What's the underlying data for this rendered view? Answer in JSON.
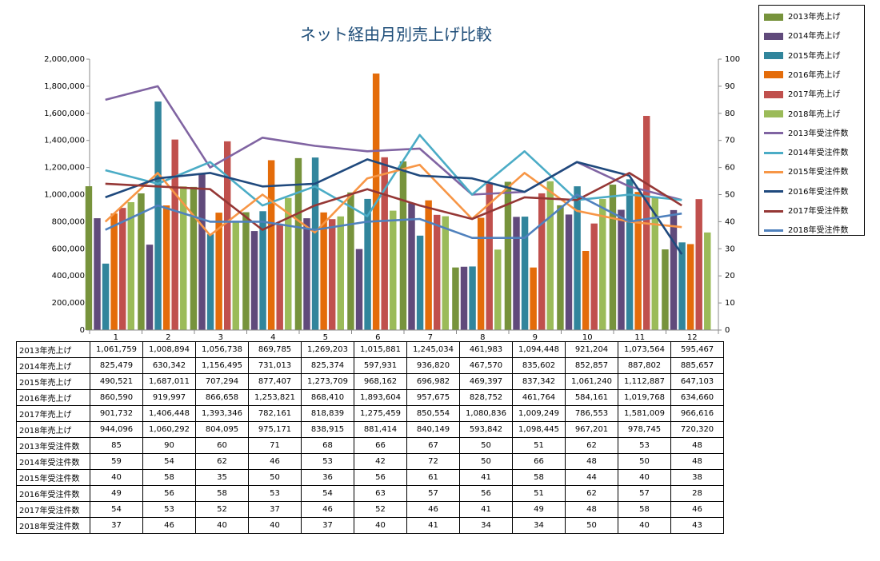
{
  "chart_data": {
    "type": "bar",
    "title": "ネット経由月別売上げ比較",
    "categories": [
      "1",
      "2",
      "3",
      "4",
      "5",
      "6",
      "7",
      "8",
      "9",
      "10",
      "11",
      "12"
    ],
    "y_left": {
      "ylim": [
        0,
        2000000
      ],
      "ticks": [
        "0",
        "200,000",
        "400,000",
        "600,000",
        "800,000",
        "1,000,000",
        "1,200,000",
        "1,400,000",
        "1,600,000",
        "1,800,000",
        "2,000,000"
      ]
    },
    "y_right": {
      "ylim": [
        0,
        100
      ],
      "ticks": [
        "0",
        "10",
        "20",
        "30",
        "40",
        "50",
        "60",
        "70",
        "80",
        "90",
        "100"
      ]
    },
    "legend_position": "top-right",
    "gridlines": false,
    "bar_series": [
      {
        "name": "2013年売上げ",
        "color": "#77933c",
        "values": [
          1061759,
          1008894,
          1056738,
          869785,
          1269203,
          1015881,
          1245034,
          461983,
          1094448,
          921204,
          1073564,
          595467
        ],
        "labels": [
          "1,061,759",
          "1,008,894",
          "1,056,738",
          "869,785",
          "1,269,203",
          "1,015,881",
          "1,245,034",
          "461,983",
          "1,094,448",
          "921,204",
          "1,073,564",
          "595,467"
        ]
      },
      {
        "name": "2014年売上げ",
        "color": "#604a7b",
        "values": [
          825479,
          630342,
          1156495,
          731013,
          825374,
          597931,
          936820,
          467570,
          835602,
          852857,
          887802,
          885657
        ],
        "labels": [
          "825,479",
          "630,342",
          "1,156,495",
          "731,013",
          "825,374",
          "597,931",
          "936,820",
          "467,570",
          "835,602",
          "852,857",
          "887,802",
          "885,657"
        ]
      },
      {
        "name": "2015年売上げ",
        "color": "#31859c",
        "values": [
          490521,
          1687011,
          707294,
          877407,
          1273709,
          968162,
          696982,
          469397,
          837342,
          1061240,
          1112887,
          647103
        ],
        "labels": [
          "490,521",
          "1,687,011",
          "707,294",
          "877,407",
          "1,273,709",
          "968,162",
          "696,982",
          "469,397",
          "837,342",
          "1,061,240",
          "1,112,887",
          "647,103"
        ]
      },
      {
        "name": "2016年売上げ",
        "color": "#e46c0a",
        "values": [
          860590,
          919997,
          866658,
          1253821,
          868410,
          1893604,
          957675,
          828752,
          461764,
          584161,
          1019768,
          634660
        ],
        "labels": [
          "860,590",
          "919,997",
          "866,658",
          "1,253,821",
          "868,410",
          "1,893,604",
          "957,675",
          "828,752",
          "461,764",
          "584,161",
          "1,019,768",
          "634,660"
        ]
      },
      {
        "name": "2017年売上げ",
        "color": "#c0504d",
        "values": [
          901732,
          1406448,
          1393346,
          782161,
          818839,
          1275459,
          850554,
          1080836,
          1009249,
          786553,
          1581009,
          966616
        ],
        "labels": [
          "901,732",
          "1,406,448",
          "1,393,346",
          "782,161",
          "818,839",
          "1,275,459",
          "850,554",
          "1,080,836",
          "1,009,249",
          "786,553",
          "1,581,009",
          "966,616"
        ]
      },
      {
        "name": "2018年売上げ",
        "color": "#9bbb59",
        "values": [
          944096,
          1060292,
          804095,
          975171,
          838915,
          881414,
          840149,
          593842,
          1098445,
          967201,
          978745,
          720320
        ],
        "labels": [
          "944,096",
          "1,060,292",
          "804,095",
          "975,171",
          "838,915",
          "881,414",
          "840,149",
          "593,842",
          "1,098,445",
          "967,201",
          "978,745",
          "720,320"
        ]
      }
    ],
    "line_series": [
      {
        "name": "2013年受注件数",
        "color": "#8064a2",
        "values": [
          85,
          90,
          60,
          71,
          68,
          66,
          67,
          50,
          51,
          62,
          53,
          48
        ]
      },
      {
        "name": "2014年受注件数",
        "color": "#4bacc6",
        "values": [
          59,
          54,
          62,
          46,
          53,
          42,
          72,
          50,
          66,
          48,
          50,
          48
        ]
      },
      {
        "name": "2015年受注件数",
        "color": "#f79646",
        "values": [
          40,
          58,
          35,
          50,
          36,
          56,
          61,
          41,
          58,
          44,
          40,
          38
        ]
      },
      {
        "name": "2016年受注件数",
        "color": "#1f497d",
        "values": [
          49,
          56,
          58,
          53,
          54,
          63,
          57,
          56,
          51,
          62,
          57,
          28
        ]
      },
      {
        "name": "2017年受注件数",
        "color": "#953735",
        "values": [
          54,
          53,
          52,
          37,
          46,
          52,
          46,
          41,
          49,
          48,
          58,
          46
        ]
      },
      {
        "name": "2018年受注件数",
        "color": "#4f81bd",
        "values": [
          37,
          46,
          40,
          40,
          37,
          40,
          41,
          34,
          34,
          50,
          40,
          43
        ]
      }
    ]
  }
}
